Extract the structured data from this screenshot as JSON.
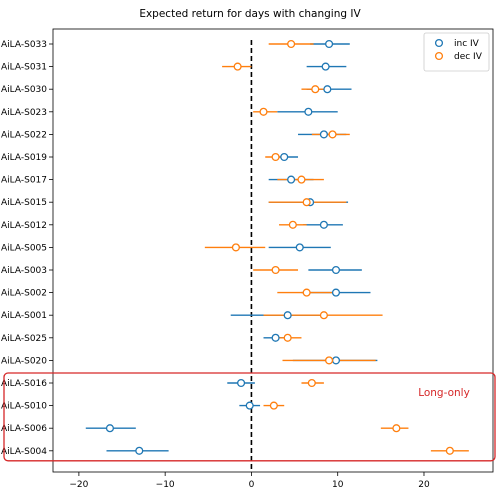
{
  "chart_data": {
    "type": "errorbar",
    "title": "Expected return for days with changing IV",
    "xlabel": "",
    "ylabel": "",
    "xlim": [
      -23,
      28
    ],
    "xticks": [
      -20,
      -10,
      0,
      10,
      20
    ],
    "zero_line": 0,
    "legend": {
      "placement": "top-right",
      "entries": [
        "inc IV",
        "dec IV"
      ]
    },
    "colors": {
      "inc IV": "#1f77b4",
      "dec IV": "#ff7f0e",
      "highlight": "#d62728",
      "zero_line": "#000000"
    },
    "categories": [
      "AiLA-S033",
      "AiLA-S031",
      "AiLA-S030",
      "AiLA-S023",
      "AiLA-S022",
      "AiLA-S019",
      "AiLA-S017",
      "AiLA-S015",
      "AiLA-S012",
      "AiLA-S005",
      "AiLA-S003",
      "AiLA-S002",
      "AiLA-S001",
      "AiLA-S025",
      "AiLA-S020",
      "AiLA-S016",
      "AiLA-S010",
      "AiLA-S006",
      "AiLA-S004"
    ],
    "series": [
      {
        "name": "inc IV",
        "points": [
          {
            "value": 9.0,
            "low": 6.8,
            "high": 11.4
          },
          {
            "value": 8.6,
            "low": 6.4,
            "high": 11.0
          },
          {
            "value": 8.8,
            "low": 6.4,
            "high": 11.6
          },
          {
            "value": 6.6,
            "low": 3.0,
            "high": 10.0
          },
          {
            "value": 8.4,
            "low": 5.4,
            "high": 11.0
          },
          {
            "value": 3.8,
            "low": 2.6,
            "high": 5.4
          },
          {
            "value": 4.6,
            "low": 2.0,
            "high": 7.2
          },
          {
            "value": 6.8,
            "low": 2.0,
            "high": 11.2
          },
          {
            "value": 8.4,
            "low": 6.0,
            "high": 10.6
          },
          {
            "value": 5.6,
            "low": 2.0,
            "high": 9.2
          },
          {
            "value": 9.8,
            "low": 6.6,
            "high": 12.8
          },
          {
            "value": 9.8,
            "low": 5.8,
            "high": 13.8
          },
          {
            "value": 4.2,
            "low": -2.4,
            "high": 8.8
          },
          {
            "value": 2.8,
            "low": 1.4,
            "high": 4.2
          },
          {
            "value": 9.8,
            "low": 4.8,
            "high": 14.6
          },
          {
            "value": -1.2,
            "low": -2.8,
            "high": 0.4
          },
          {
            "value": -0.2,
            "low": -1.4,
            "high": 1.0
          },
          {
            "value": -16.4,
            "low": -19.2,
            "high": -13.4
          },
          {
            "value": -13.0,
            "low": -16.8,
            "high": -9.6
          }
        ]
      },
      {
        "name": "dec IV",
        "points": [
          {
            "value": 4.6,
            "low": 2.0,
            "high": 7.2
          },
          {
            "value": -1.6,
            "low": -3.4,
            "high": 0.0
          },
          {
            "value": 7.4,
            "low": 5.8,
            "high": 9.0
          },
          {
            "value": 1.4,
            "low": 0.2,
            "high": 3.0
          },
          {
            "value": 9.4,
            "low": 7.0,
            "high": 11.4
          },
          {
            "value": 2.8,
            "low": 1.6,
            "high": 4.0
          },
          {
            "value": 5.8,
            "low": 3.0,
            "high": 8.4
          },
          {
            "value": 6.4,
            "low": 2.0,
            "high": 11.0
          },
          {
            "value": 4.8,
            "low": 3.2,
            "high": 6.4
          },
          {
            "value": -1.8,
            "low": -5.4,
            "high": 1.6
          },
          {
            "value": 2.8,
            "low": 0.2,
            "high": 5.4
          },
          {
            "value": 6.4,
            "low": 3.0,
            "high": 9.8
          },
          {
            "value": 8.4,
            "low": 1.4,
            "high": 15.2
          },
          {
            "value": 4.2,
            "low": 2.8,
            "high": 5.8
          },
          {
            "value": 9.0,
            "low": 3.6,
            "high": 14.4
          },
          {
            "value": 7.0,
            "low": 5.8,
            "high": 8.4
          },
          {
            "value": 2.6,
            "low": 1.4,
            "high": 3.8
          },
          {
            "value": 16.8,
            "low": 15.0,
            "high": 18.2
          },
          {
            "value": 23.0,
            "low": 20.8,
            "high": 25.2
          }
        ]
      }
    ],
    "highlight": {
      "label": "Long-only",
      "categories": [
        "AiLA-S016",
        "AiLA-S010",
        "AiLA-S006",
        "AiLA-S004"
      ]
    }
  }
}
